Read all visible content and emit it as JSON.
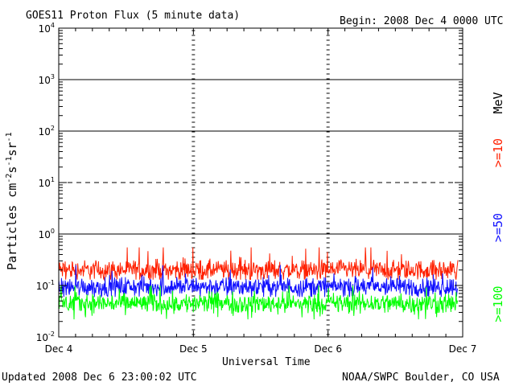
{
  "chart_data": {
    "type": "line",
    "title": "GOES11 Proton Flux (5 minute data)",
    "begin_text": "Begin: 2008 Dec 4 0000 UTC",
    "xlabel": "Universal Time",
    "ylabel": "Particles cm",
    "ylabel_sup1": "-2",
    "ylabel_s": "s",
    "ylabel_sup2": "-1",
    "ylabel_sr": "sr",
    "ylabel_sup3": "-1",
    "xlim": [
      "2008-12-04T00:00",
      "2008-12-07T00:00"
    ],
    "ylim": [
      0.01,
      10000
    ],
    "yscale": "log",
    "x_ticks": [
      "Dec 4",
      "Dec 5",
      "Dec 6",
      "Dec 7"
    ],
    "y_ticks": [
      {
        "base": "10",
        "exp": "-2"
      },
      {
        "base": "10",
        "exp": "-1"
      },
      {
        "base": "10",
        "exp": "0"
      },
      {
        "base": "10",
        "exp": "1"
      },
      {
        "base": "10",
        "exp": "2"
      },
      {
        "base": "10",
        "exp": "3"
      },
      {
        "base": "10",
        "exp": "4"
      }
    ],
    "threshold_lines": [
      {
        "value": 1,
        "style": "solid"
      },
      {
        "value": 10,
        "style": "dashed"
      },
      {
        "value": 100,
        "style": "solid"
      },
      {
        "value": 1000,
        "style": "solid"
      }
    ],
    "unit_label": "MeV",
    "series": [
      {
        "name": ">=10",
        "color": "#ff2000",
        "mean": 0.2,
        "min": 0.13,
        "max": 0.55
      },
      {
        "name": ">=50",
        "color": "#1010ff",
        "mean": 0.095,
        "min": 0.06,
        "max": 0.25
      },
      {
        "name": ">=100",
        "color": "#00ff00",
        "mean": 0.045,
        "min": 0.022,
        "max": 0.1
      }
    ],
    "grid": false,
    "legend": "right-vertical"
  },
  "footer": {
    "updated": "Updated 2008 Dec  6 23:00:02 UTC",
    "source": "NOAA/SWPC Boulder, CO USA"
  }
}
